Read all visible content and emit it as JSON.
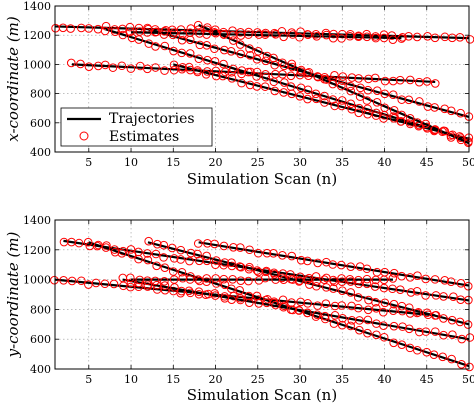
{
  "chart_data": [
    {
      "type": "line",
      "xlabel": "Simulation Scan (n)",
      "ylabel": "x-coordinate (m)",
      "xlim": [
        1,
        50
      ],
      "ylim": [
        400,
        1400
      ],
      "xticks": [
        5,
        10,
        15,
        20,
        25,
        30,
        35,
        40,
        45,
        50
      ],
      "yticks": [
        400,
        600,
        800,
        1000,
        1200,
        1400
      ],
      "grid": true,
      "legend": {
        "position": "bottom-left",
        "entries": [
          "Trajectories",
          "Estimates"
        ]
      },
      "colors": {
        "trajectory": "#000000",
        "estimate": "#ff0000"
      },
      "tracks": [
        {
          "x0": 1,
          "y0": 1260,
          "x1": 50,
          "y1": 1180
        },
        {
          "x0": 3,
          "y0": 1000,
          "x1": 46,
          "y1": 880
        },
        {
          "x0": 7,
          "y0": 1240,
          "x1": 50,
          "y1": 480
        },
        {
          "x0": 12,
          "y0": 1240,
          "x1": 50,
          "y1": 640
        },
        {
          "x0": 15,
          "y0": 1000,
          "x1": 50,
          "y1": 490
        },
        {
          "x0": 18,
          "y0": 1270,
          "x1": 50,
          "y1": 460
        },
        {
          "x0": 10,
          "y0": 1220,
          "x1": 42,
          "y1": 1180
        }
      ]
    },
    {
      "type": "line",
      "xlabel": "Simulation Scan (n)",
      "ylabel": "y-coordinate (m)",
      "xlim": [
        1,
        50
      ],
      "ylim": [
        400,
        1400
      ],
      "xticks": [
        5,
        10,
        15,
        20,
        25,
        30,
        35,
        40,
        45,
        50
      ],
      "yticks": [
        400,
        600,
        800,
        1000,
        1200,
        1400
      ],
      "grid": true,
      "colors": {
        "trajectory": "#000000",
        "estimate": "#ff0000"
      },
      "tracks": [
        {
          "x0": 2,
          "y0": 1260,
          "x1": 50,
          "y1": 860
        },
        {
          "x0": 1,
          "y0": 1000,
          "x1": 46,
          "y1": 760
        },
        {
          "x0": 5,
          "y0": 1250,
          "x1": 50,
          "y1": 420
        },
        {
          "x0": 9,
          "y0": 1000,
          "x1": 50,
          "y1": 600
        },
        {
          "x0": 12,
          "y0": 1250,
          "x1": 50,
          "y1": 700
        },
        {
          "x0": 18,
          "y0": 1250,
          "x1": 50,
          "y1": 960
        },
        {
          "x0": 10,
          "y0": 1000,
          "x1": 41,
          "y1": 1000
        }
      ]
    }
  ]
}
